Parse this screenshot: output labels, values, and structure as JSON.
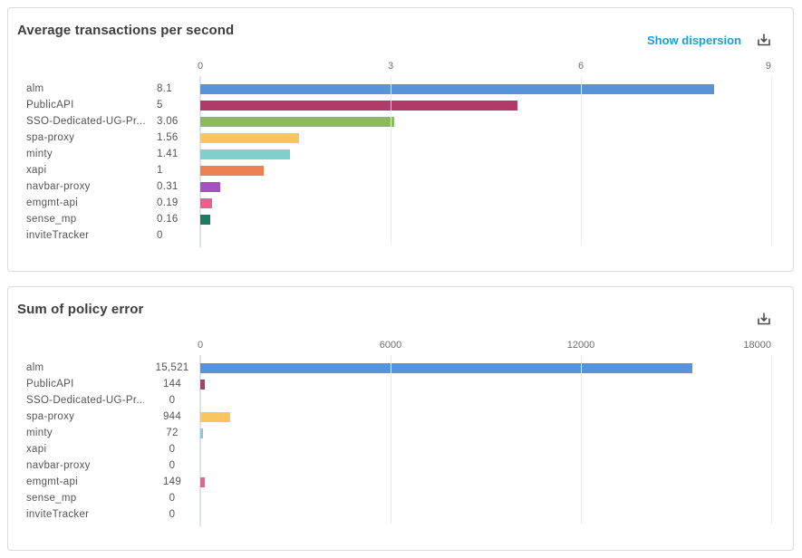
{
  "colors": {
    "link": "#1a9fd9",
    "panel_border": "#d9d9d9",
    "axis_line": "#dfe2ef",
    "gridline": "#ececec",
    "label_text": "#545454",
    "tick_text": "#6e6e6e",
    "title_text": "#3d3d3d"
  },
  "panels": [
    {
      "title": "Average transactions per second",
      "actions": {
        "dispersion_link": "Show dispersion",
        "download_icon": "download-icon"
      },
      "chart_data": {
        "type": "bar",
        "orientation": "horizontal",
        "title": "Average transactions per second",
        "categories": [
          "alm",
          "PublicAPI",
          "SSO-Dedicated-UG-Pr...",
          "spa-proxy",
          "minty",
          "xapi",
          "navbar-proxy",
          "emgmt-api",
          "sense_mp",
          "inviteTracker"
        ],
        "values": [
          8.1,
          5,
          3.06,
          1.56,
          1.41,
          1,
          0.31,
          0.19,
          0.16,
          0
        ],
        "value_labels": [
          "8.1",
          "5",
          "3.06",
          "1.56",
          "1.41",
          "1",
          "0.31",
          "0.19",
          "0.16",
          "0"
        ],
        "bar_colors": [
          "#5693d9",
          "#b23a68",
          "#8cb95f",
          "#fac55f",
          "#7ecfce",
          "#ec8050",
          "#a551be",
          "#ef5f8e",
          "#1f7a63",
          null
        ],
        "xlim": [
          0,
          9
        ],
        "x_ticks": [
          "0",
          "3",
          "6",
          "9"
        ],
        "grid": true,
        "legend": "none"
      }
    },
    {
      "title": "Sum of policy error",
      "actions": {
        "download_icon": "download-icon"
      },
      "chart_data": {
        "type": "bar",
        "orientation": "horizontal",
        "title": "Sum of policy error",
        "categories": [
          "alm",
          "PublicAPI",
          "SSO-Dedicated-UG-Pr...",
          "spa-proxy",
          "minty",
          "xapi",
          "navbar-proxy",
          "emgmt-api",
          "sense_mp",
          "inviteTracker"
        ],
        "values": [
          15521,
          144,
          0,
          944,
          72,
          0,
          0,
          149,
          0,
          0
        ],
        "value_labels": [
          "15,521",
          "144",
          "0",
          "944",
          "72",
          "0",
          "0",
          "149",
          "0",
          "0"
        ],
        "bar_colors": [
          "#5693d9",
          "#b23a68",
          "#8cb95f",
          "#fac55f",
          "#7ecfce",
          "#ec8050",
          "#a551be",
          "#ef5f8e",
          "#1f7a63",
          null
        ],
        "xlim": [
          0,
          18000
        ],
        "x_ticks": [
          "0",
          "6000",
          "12000",
          "18000"
        ],
        "grid": true,
        "legend": "none"
      }
    }
  ]
}
